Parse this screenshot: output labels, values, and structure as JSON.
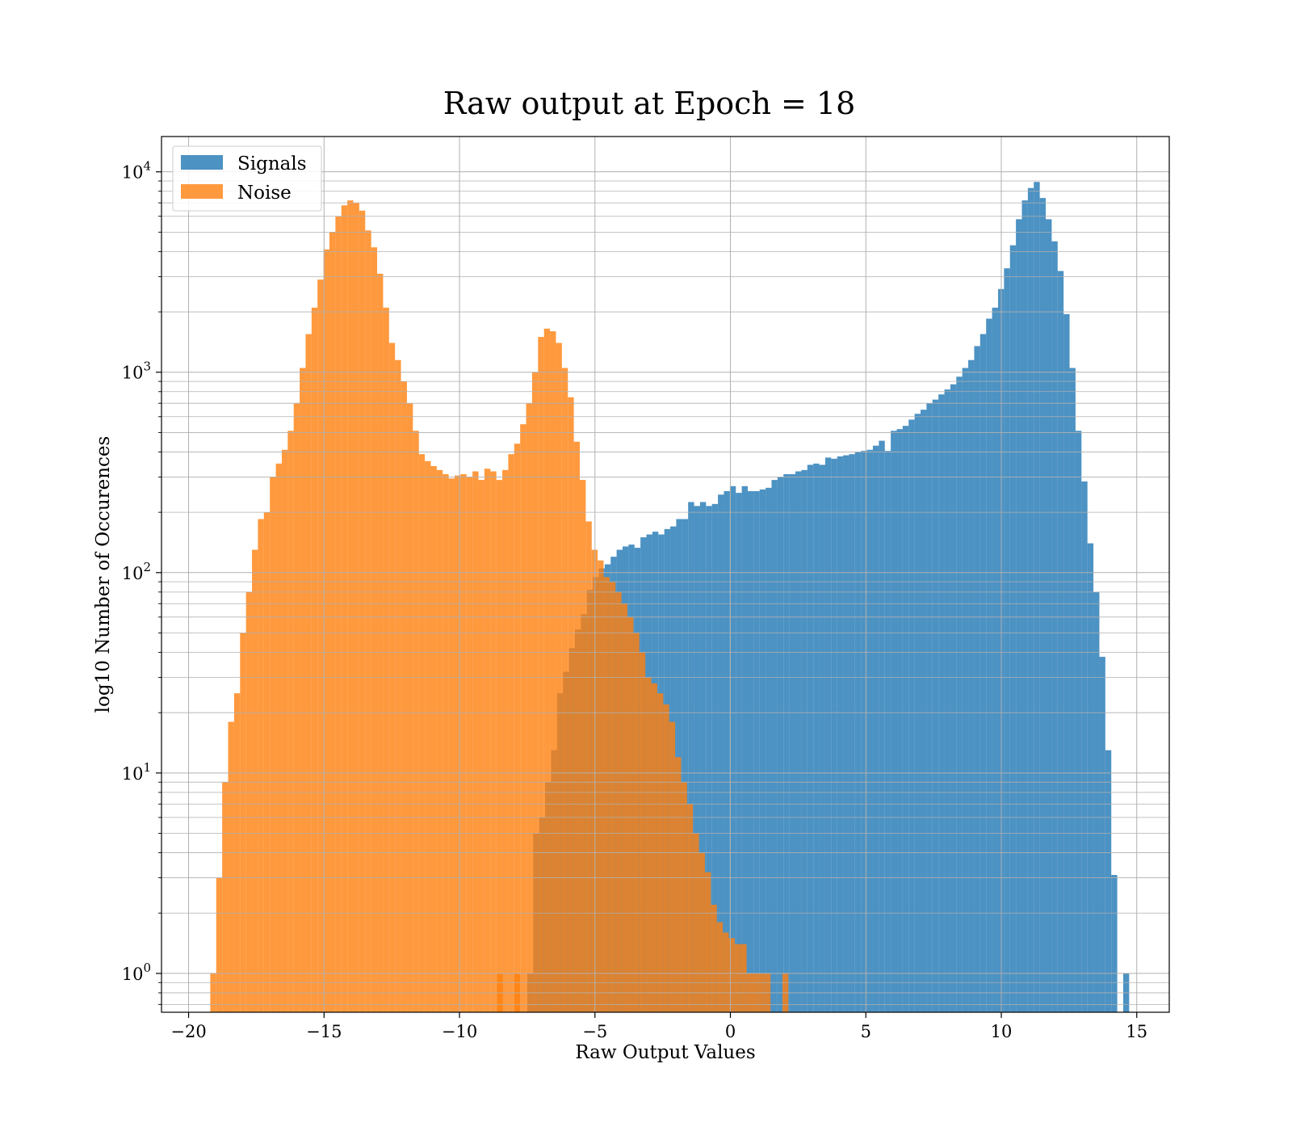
{
  "chart_data": {
    "type": "histogram",
    "title": "Raw output at Epoch = 18",
    "xlabel": "Raw Output Values",
    "ylabel": "log10 Number of Occurences",
    "xlim": [
      -21.0,
      16.2
    ],
    "ylim": [
      0.64,
      15000
    ],
    "yscale": "log",
    "grid": true,
    "legend": "upper left",
    "x_ticks": [
      -20,
      -15,
      -10,
      -5,
      0,
      5,
      10,
      15
    ],
    "x_tick_labels": [
      "−20",
      "−15",
      "−10",
      "−5",
      "0",
      "5",
      "10",
      "15"
    ],
    "y_ticks": [
      1,
      10,
      100,
      1000,
      10000
    ],
    "y_tick_bases": [
      "10",
      "10",
      "10",
      "10",
      "10"
    ],
    "y_tick_exponents": [
      "0",
      "1",
      "2",
      "3",
      "4"
    ],
    "series": [
      {
        "name": "Signals",
        "color": "#1f77b4",
        "alpha": 0.8,
        "bin_width": 0.22,
        "bins": [
          [
            -7.5,
            1
          ],
          [
            -7.28,
            5
          ],
          [
            -7.06,
            6
          ],
          [
            -6.84,
            9
          ],
          [
            -6.62,
            13
          ],
          [
            -6.4,
            25
          ],
          [
            -6.18,
            32
          ],
          [
            -5.96,
            42
          ],
          [
            -5.74,
            52
          ],
          [
            -5.52,
            62
          ],
          [
            -5.3,
            82
          ],
          [
            -5.08,
            95
          ],
          [
            -4.86,
            105
          ],
          [
            -4.64,
            110
          ],
          [
            -4.42,
            120
          ],
          [
            -4.2,
            130
          ],
          [
            -3.98,
            135
          ],
          [
            -3.76,
            138
          ],
          [
            -3.54,
            133
          ],
          [
            -3.32,
            150
          ],
          [
            -3.1,
            155
          ],
          [
            -2.88,
            160
          ],
          [
            -2.66,
            155
          ],
          [
            -2.44,
            165
          ],
          [
            -2.22,
            170
          ],
          [
            -2.0,
            185
          ],
          [
            -1.78,
            185
          ],
          [
            -1.56,
            225
          ],
          [
            -1.34,
            215
          ],
          [
            -1.12,
            225
          ],
          [
            -0.9,
            215
          ],
          [
            -0.68,
            220
          ],
          [
            -0.46,
            245
          ],
          [
            -0.24,
            255
          ],
          [
            -0.02,
            270
          ],
          [
            0.2,
            250
          ],
          [
            0.42,
            270
          ],
          [
            0.64,
            255
          ],
          [
            0.86,
            255
          ],
          [
            1.08,
            260
          ],
          [
            1.3,
            265
          ],
          [
            1.52,
            290
          ],
          [
            1.74,
            300
          ],
          [
            1.96,
            310
          ],
          [
            2.18,
            310
          ],
          [
            2.4,
            320
          ],
          [
            2.62,
            325
          ],
          [
            2.84,
            345
          ],
          [
            3.06,
            350
          ],
          [
            3.28,
            345
          ],
          [
            3.5,
            375
          ],
          [
            3.72,
            370
          ],
          [
            3.94,
            380
          ],
          [
            4.16,
            385
          ],
          [
            4.38,
            390
          ],
          [
            4.6,
            400
          ],
          [
            4.82,
            405
          ],
          [
            5.04,
            410
          ],
          [
            5.26,
            430
          ],
          [
            5.48,
            455
          ],
          [
            5.7,
            405
          ],
          [
            5.92,
            510
          ],
          [
            6.14,
            520
          ],
          [
            6.36,
            540
          ],
          [
            6.58,
            580
          ],
          [
            6.8,
            620
          ],
          [
            7.02,
            650
          ],
          [
            7.24,
            700
          ],
          [
            7.46,
            730
          ],
          [
            7.68,
            775
          ],
          [
            7.9,
            820
          ],
          [
            8.12,
            870
          ],
          [
            8.34,
            950
          ],
          [
            8.56,
            1050
          ],
          [
            8.78,
            1150
          ],
          [
            9.0,
            1350
          ],
          [
            9.22,
            1550
          ],
          [
            9.44,
            1850
          ],
          [
            9.66,
            2100
          ],
          [
            9.88,
            2600
          ],
          [
            10.1,
            3300
          ],
          [
            10.32,
            4300
          ],
          [
            10.54,
            5800
          ],
          [
            10.76,
            7200
          ],
          [
            10.98,
            8300
          ],
          [
            11.2,
            8900
          ],
          [
            11.42,
            7400
          ],
          [
            11.64,
            5800
          ],
          [
            11.86,
            4500
          ],
          [
            12.08,
            3200
          ],
          [
            12.3,
            1950
          ],
          [
            12.52,
            1050
          ],
          [
            12.74,
            510
          ],
          [
            12.96,
            285
          ],
          [
            13.18,
            140
          ],
          [
            13.4,
            80
          ],
          [
            13.62,
            38
          ],
          [
            13.84,
            13
          ],
          [
            14.06,
            3.1
          ],
          [
            14.28,
            0
          ],
          [
            14.5,
            1
          ]
        ]
      },
      {
        "name": "Noise",
        "color": "#ff7f0e",
        "alpha": 0.8,
        "bin_width": 0.22,
        "bins": [
          [
            -19.2,
            1
          ],
          [
            -18.98,
            3
          ],
          [
            -18.76,
            9
          ],
          [
            -18.54,
            18
          ],
          [
            -18.32,
            25
          ],
          [
            -18.1,
            50
          ],
          [
            -17.88,
            80
          ],
          [
            -17.66,
            130
          ],
          [
            -17.44,
            185
          ],
          [
            -17.22,
            200
          ],
          [
            -17.0,
            300
          ],
          [
            -16.78,
            350
          ],
          [
            -16.56,
            410
          ],
          [
            -16.34,
            510
          ],
          [
            -16.12,
            700
          ],
          [
            -15.9,
            1050
          ],
          [
            -15.68,
            1550
          ],
          [
            -15.46,
            2100
          ],
          [
            -15.24,
            2900
          ],
          [
            -15.02,
            4100
          ],
          [
            -14.8,
            5000
          ],
          [
            -14.58,
            6000
          ],
          [
            -14.36,
            6800
          ],
          [
            -14.14,
            7200
          ],
          [
            -13.92,
            7000
          ],
          [
            -13.7,
            6400
          ],
          [
            -13.48,
            5100
          ],
          [
            -13.26,
            4200
          ],
          [
            -13.04,
            3100
          ],
          [
            -12.82,
            2100
          ],
          [
            -12.6,
            1400
          ],
          [
            -12.38,
            1150
          ],
          [
            -12.16,
            900
          ],
          [
            -11.94,
            700
          ],
          [
            -11.72,
            510
          ],
          [
            -11.5,
            390
          ],
          [
            -11.28,
            360
          ],
          [
            -11.06,
            340
          ],
          [
            -10.84,
            325
          ],
          [
            -10.62,
            310
          ],
          [
            -10.4,
            295
          ],
          [
            -10.18,
            305
          ],
          [
            -9.96,
            310
          ],
          [
            -9.74,
            300
          ],
          [
            -9.52,
            320
          ],
          [
            -9.3,
            290
          ],
          [
            -9.08,
            330
          ],
          [
            -8.86,
            320
          ],
          [
            -8.64,
            290
          ],
          [
            -8.42,
            325
          ],
          [
            -8.2,
            390
          ],
          [
            -7.98,
            440
          ],
          [
            -7.76,
            550
          ],
          [
            -7.54,
            700
          ],
          [
            -7.32,
            1000
          ],
          [
            -7.1,
            1500
          ],
          [
            -6.88,
            1650
          ],
          [
            -6.66,
            1600
          ],
          [
            -6.44,
            1400
          ],
          [
            -6.22,
            1050
          ],
          [
            -6.0,
            750
          ],
          [
            -5.78,
            450
          ],
          [
            -5.56,
            290
          ],
          [
            -5.34,
            180
          ],
          [
            -5.12,
            130
          ],
          [
            -4.9,
            115
          ],
          [
            -4.68,
            95
          ],
          [
            -4.46,
            90
          ],
          [
            -4.24,
            80
          ],
          [
            -4.02,
            70
          ],
          [
            -3.8,
            60
          ],
          [
            -3.58,
            50
          ],
          [
            -3.36,
            40
          ],
          [
            -3.14,
            30
          ],
          [
            -2.92,
            28
          ],
          [
            -2.7,
            25
          ],
          [
            -2.48,
            22
          ],
          [
            -2.26,
            18
          ],
          [
            -2.04,
            12
          ],
          [
            -1.82,
            9
          ],
          [
            -1.6,
            7
          ],
          [
            -1.38,
            5
          ],
          [
            -1.16,
            4
          ],
          [
            -0.94,
            3.2
          ],
          [
            -0.72,
            2.2
          ],
          [
            -0.5,
            1.8
          ],
          [
            -0.28,
            1.6
          ],
          [
            -0.06,
            1.5
          ],
          [
            0.16,
            1.4
          ],
          [
            0.38,
            1.4
          ],
          [
            0.6,
            1
          ],
          [
            0.82,
            1
          ],
          [
            1.04,
            1
          ],
          [
            1.26,
            1
          ],
          [
            1.48,
            0
          ],
          [
            1.7,
            0
          ],
          [
            1.92,
            1
          ],
          [
            -8.62,
            1
          ],
          [
            -7.98,
            1
          ]
        ]
      }
    ]
  }
}
